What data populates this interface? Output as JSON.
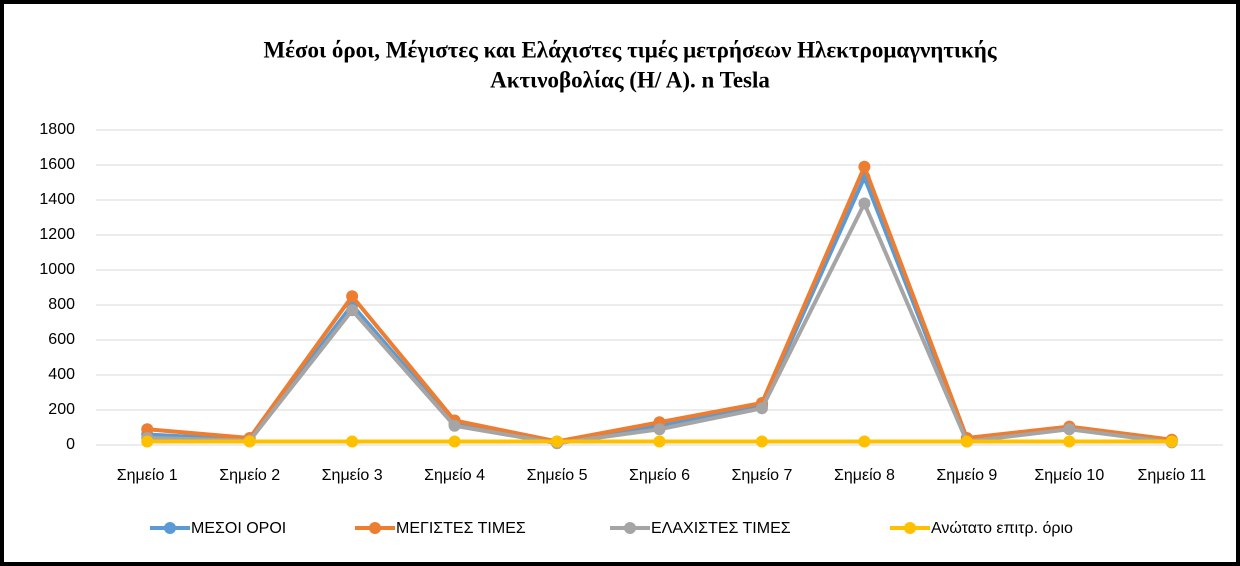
{
  "chart_data": {
    "type": "line",
    "title": [
      "Μέσοι όροι,  Μέγιστες και  Ελάχιστες τιμές μετρήσεων Ηλεκτρομαγνητικής",
      "Ακτινοβολίας (Η/ Α).   n Tesla"
    ],
    "categories": [
      "Σημείο 1",
      "Σημείο 2",
      "Σημείο 3",
      "Σημείο 4",
      "Σημείο 5",
      "Σημείο 6",
      "Σημείο 7",
      "Σημείο 8",
      "Σημείο 9",
      "Σημείο 10",
      "Σημείο 11"
    ],
    "series": [
      {
        "name": "ΜΕΣΟΙ ΟΡΟΙ",
        "color": "#5b9bd5",
        "values": [
          60,
          30,
          800,
          120,
          15,
          110,
          225,
          1530,
          30,
          95,
          25
        ]
      },
      {
        "name": "ΜΕΓΙΣΤΕΣ ΤΙΜΕΣ",
        "color": "#ed7d31",
        "values": [
          90,
          40,
          850,
          140,
          20,
          130,
          240,
          1590,
          40,
          105,
          30
        ]
      },
      {
        "name": "ΕΛΑΧΙΣΤΕΣ ΤΙΜΕΣ",
        "color": "#a5a5a5",
        "values": [
          40,
          25,
          770,
          110,
          10,
          90,
          210,
          1380,
          20,
          90,
          15
        ]
      },
      {
        "name": "Ανώτατο επιτρ. όριο",
        "color": "#ffc000",
        "values": [
          20,
          20,
          20,
          20,
          20,
          20,
          20,
          20,
          20,
          20,
          20
        ]
      }
    ],
    "ylim": [
      0,
      1800
    ],
    "yticks": [
      0,
      200,
      400,
      600,
      800,
      1000,
      1200,
      1400,
      1600,
      1800
    ],
    "grid": true,
    "legend": "bottom"
  }
}
